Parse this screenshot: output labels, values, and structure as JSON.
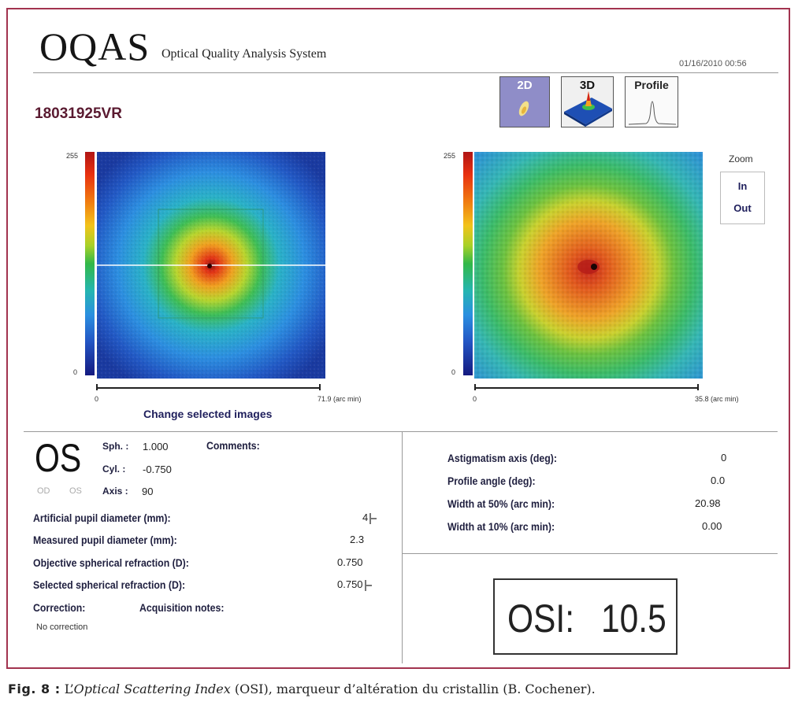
{
  "header": {
    "logo": "OQAS",
    "logo_subtitle": "Optical Quality Analysis System",
    "datetime": "01/16/2010 00:56",
    "patient_id": "18031925VR"
  },
  "view_buttons": {
    "btn_2d": "2D",
    "btn_3d": "3D",
    "btn_profile": "Profile"
  },
  "left_image": {
    "colorbar_max": "255",
    "colorbar_min": "0",
    "axis_start": "0",
    "axis_end": "71.9 (arc min)",
    "change_selected": "Change selected images"
  },
  "right_image": {
    "colorbar_max": "255",
    "colorbar_min": "0",
    "axis_start": "0",
    "axis_end": "35.8 (arc min)"
  },
  "zoom": {
    "label": "Zoom",
    "in": "In",
    "out": "Out"
  },
  "eye": {
    "selected": "OS",
    "od": "OD",
    "os": "OS"
  },
  "refraction": {
    "sph_label": "Sph. :",
    "sph_value": "1.000",
    "cyl_label": "Cyl. :",
    "cyl_value": "-0.750",
    "axis_label": "Axis :",
    "axis_value": "90",
    "comments_label": "Comments:"
  },
  "measurements": {
    "artificial_pupil_label": "Artificial pupil diameter (mm):",
    "artificial_pupil_value": "4",
    "measured_pupil_label": "Measured pupil diameter (mm):",
    "measured_pupil_value": "2.3",
    "objective_refraction_label": "Objective spherical refraction (D):",
    "objective_refraction_value": "0.750",
    "selected_refraction_label": "Selected spherical refraction (D):",
    "selected_refraction_value": "0.750",
    "correction_label": "Correction:",
    "acquisition_notes_label": "Acquisition notes:",
    "correction_value": "No correction"
  },
  "results": {
    "astig_label": "Astigmatism axis (deg):",
    "astig_value": "0",
    "profile_angle_label": "Profile angle (deg):",
    "profile_angle_value": "0.0",
    "width50_label": "Width at 50% (arc min):",
    "width50_value": "20.98",
    "width10_label": "Width at 10% (arc min):",
    "width10_value": "0.00"
  },
  "osi": {
    "label": "OSI:",
    "value": "10.5"
  },
  "caption": {
    "prefix": "Fig. 8 :",
    "l_prefix": "L’",
    "term": "Optical Scattering Index",
    "rest": " (OSI), marqueur d’altération du cristallin (B. Cochener)."
  },
  "colors": {
    "frame": "#a2334f",
    "label": "#1f1f3f",
    "button_2d_active": "#8f8dc8"
  }
}
